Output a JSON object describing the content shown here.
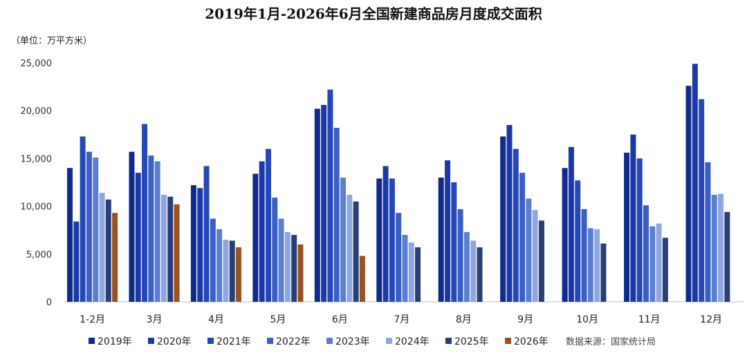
{
  "chart_data": {
    "type": "bar",
    "title": "2019年1月-2026年6月全国新建商品房月度成交面积",
    "unit_label": "（单位：万平方米）",
    "source": "数据来源：国家统计局",
    "ylim": [
      0,
      25000
    ],
    "yticks": [
      0,
      5000,
      10000,
      15000,
      20000,
      25000
    ],
    "ytick_labels": [
      "0",
      "5,000",
      "10,000",
      "15,000",
      "20,000",
      "25,000"
    ],
    "grid": false,
    "legend_position": "bottom",
    "categories": [
      "1-2月",
      "3月",
      "4月",
      "5月",
      "6月",
      "7月",
      "8月",
      "9月",
      "10月",
      "11月",
      "12月"
    ],
    "series": [
      {
        "name": "2019年",
        "color": "#0f2a8c",
        "values": [
          14000,
          15700,
          12200,
          13400,
          20200,
          12900,
          13000,
          17300,
          14000,
          15600,
          22600
        ]
      },
      {
        "name": "2020年",
        "color": "#1b38a8",
        "values": [
          8400,
          13500,
          11900,
          14700,
          20600,
          14200,
          14800,
          18500,
          16200,
          17500,
          24900
        ]
      },
      {
        "name": "2021年",
        "color": "#2547b8",
        "values": [
          17300,
          18600,
          14200,
          16000,
          22200,
          12900,
          12500,
          16000,
          12700,
          15000,
          21200
        ]
      },
      {
        "name": "2022年",
        "color": "#3a5ec4",
        "values": [
          15700,
          15300,
          8700,
          10900,
          18200,
          9300,
          9700,
          13500,
          9700,
          10100,
          14600
        ]
      },
      {
        "name": "2023年",
        "color": "#5a7fd0",
        "values": [
          15100,
          14700,
          7600,
          8700,
          13000,
          7000,
          7300,
          10800,
          7700,
          7900,
          11200
        ]
      },
      {
        "name": "2024年",
        "color": "#8ea7e0",
        "values": [
          11400,
          11200,
          6500,
          7300,
          11200,
          6200,
          6400,
          9600,
          7600,
          8200,
          11300
        ]
      },
      {
        "name": "2025年",
        "color": "#2a3f73",
        "values": [
          10700,
          11000,
          6400,
          7000,
          10500,
          5700,
          5700,
          8500,
          6100,
          6700,
          9400
        ]
      },
      {
        "name": "2026年",
        "color": "#9a5220",
        "values": [
          9300,
          10200,
          5700,
          6000,
          4800,
          null,
          null,
          null,
          null,
          null,
          null
        ]
      }
    ]
  }
}
